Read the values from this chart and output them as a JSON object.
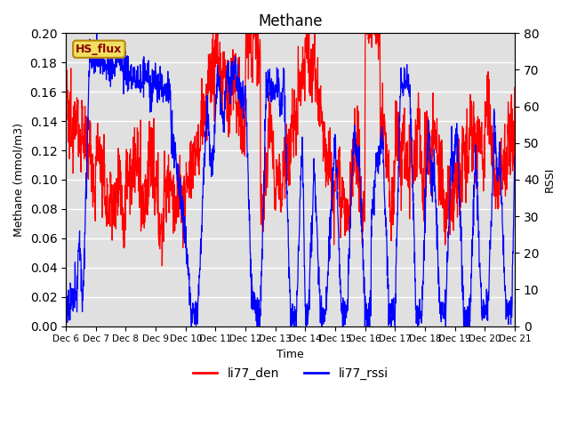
{
  "title": "Methane",
  "xlabel": "Time",
  "ylabel_left": "Methane (mmol/m3)",
  "ylabel_right": "RSSI",
  "ylim_left": [
    0.0,
    0.2
  ],
  "ylim_right": [
    0,
    80
  ],
  "yticks_left": [
    0.0,
    0.02,
    0.04,
    0.06,
    0.08,
    0.1,
    0.12,
    0.14,
    0.16,
    0.18,
    0.2
  ],
  "yticks_right": [
    0,
    10,
    20,
    30,
    40,
    50,
    60,
    70,
    80
  ],
  "background_color": "#e0e0e0",
  "line_color_den": "#ff0000",
  "line_color_rssi": "#0000ff",
  "legend_label_den": "li77_den",
  "legend_label_rssi": "li77_rssi",
  "annotation_text": "HS_flux",
  "n_points": 2000,
  "tick_days": [
    6,
    7,
    8,
    9,
    10,
    11,
    12,
    13,
    14,
    15,
    16,
    17,
    18,
    19,
    20,
    21
  ]
}
